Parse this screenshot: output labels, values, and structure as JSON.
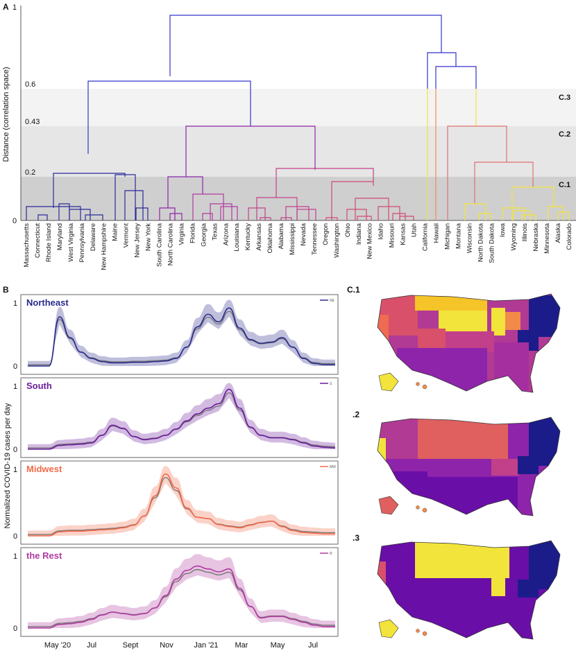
{
  "panel_labels": {
    "a": "A",
    "b": "B",
    "c1": "C.1",
    "c2": ".2",
    "c3": ".3"
  },
  "chart_data": [
    {
      "type": "dendrogram",
      "panel": "A",
      "ylabel": "Distance (correlation space)",
      "yticks": [
        "0",
        "0.2",
        "0.43",
        "0.6",
        "1"
      ],
      "ylim": [
        0,
        1
      ],
      "cut_levels": [
        {
          "label": "C.3",
          "value": 0.6
        },
        {
          "label": "C.2",
          "value": 0.43
        },
        {
          "label": "C.1",
          "value": 0.2
        }
      ],
      "leaves": [
        "Massachusetts",
        "Connecticut",
        "Rhode Island",
        "Maryland",
        "West Virginia",
        "Pennsylvania",
        "Delaware",
        "New Hampshire",
        "Maine",
        "Vermont",
        "New Jersey",
        "New York",
        "South Carolina",
        "North Carolina",
        "Virginia",
        "Florida",
        "Georgia",
        "Texas",
        "Arizona",
        "Louisiana",
        "Kentucky",
        "Arkansas",
        "Oklahoma",
        "Alabama",
        "Mississippi",
        "Nevada",
        "Tennessee",
        "Oregon",
        "Washington",
        "Ohio",
        "Indiana",
        "New Mexico",
        "Idaho",
        "Missouri",
        "Kansas",
        "Utah",
        "California",
        "Hawaii",
        "Michigan",
        "Montana",
        "Wisconsin",
        "North Dakota",
        "South Dakota",
        "Iowa",
        "Wyoming",
        "Illinois",
        "Nebraska",
        "Minnesota",
        "Alaska",
        "Colorado"
      ]
    },
    {
      "type": "line",
      "panel": "B",
      "ylabel": "Normalized COVID-19 cases per day",
      "x_ticks": [
        "May '20",
        "Jul",
        "Sept",
        "Nov",
        "Jan '21",
        "Mar",
        "May",
        "Jul"
      ],
      "yticks": [
        "0",
        "1"
      ],
      "ylim": [
        0,
        1
      ],
      "series": [
        {
          "name": "Northeast",
          "legend": "NE",
          "color": "#2a2a8c",
          "values": [
            0,
            0,
            0,
            0.78,
            0.45,
            0.22,
            0.12,
            0.07,
            0.05,
            0.05,
            0.06,
            0.06,
            0.07,
            0.08,
            0.12,
            0.3,
            0.62,
            0.82,
            0.7,
            0.92,
            0.6,
            0.42,
            0.36,
            0.38,
            0.45,
            0.3,
            0.12,
            0.04,
            0.02,
            0.02
          ]
        },
        {
          "name": "South",
          "legend": "S",
          "color": "#6a1b9a",
          "values": [
            0,
            0,
            0,
            0.06,
            0.07,
            0.08,
            0.1,
            0.22,
            0.38,
            0.33,
            0.2,
            0.15,
            0.17,
            0.22,
            0.32,
            0.45,
            0.56,
            0.65,
            0.72,
            0.95,
            0.65,
            0.35,
            0.22,
            0.18,
            0.18,
            0.15,
            0.1,
            0.05,
            0.03,
            0.02
          ]
        },
        {
          "name": "Midwest",
          "legend": "MW",
          "color": "#f26b4a",
          "values": [
            0,
            0,
            0,
            0.06,
            0.07,
            0.07,
            0.08,
            0.09,
            0.1,
            0.12,
            0.16,
            0.3,
            0.6,
            0.93,
            0.72,
            0.42,
            0.28,
            0.26,
            0.17,
            0.14,
            0.12,
            0.16,
            0.2,
            0.22,
            0.14,
            0.08,
            0.05,
            0.04,
            0.03,
            0.03
          ]
        },
        {
          "name": "the Rest",
          "legend": "R",
          "color": "#b03aa0",
          "values": [
            0,
            0,
            0,
            0.05,
            0.06,
            0.08,
            0.12,
            0.18,
            0.22,
            0.2,
            0.18,
            0.2,
            0.28,
            0.45,
            0.68,
            0.8,
            0.86,
            0.82,
            0.78,
            0.82,
            0.55,
            0.3,
            0.14,
            0.16,
            0.16,
            0.12,
            0.08,
            0.04,
            0.02,
            0.02
          ]
        }
      ]
    }
  ],
  "colors": {
    "grey_trace": "#777777",
    "band_dark": "#cccccc",
    "band_mid": "#e6e6e6",
    "band_light": "#f3f3f3"
  }
}
